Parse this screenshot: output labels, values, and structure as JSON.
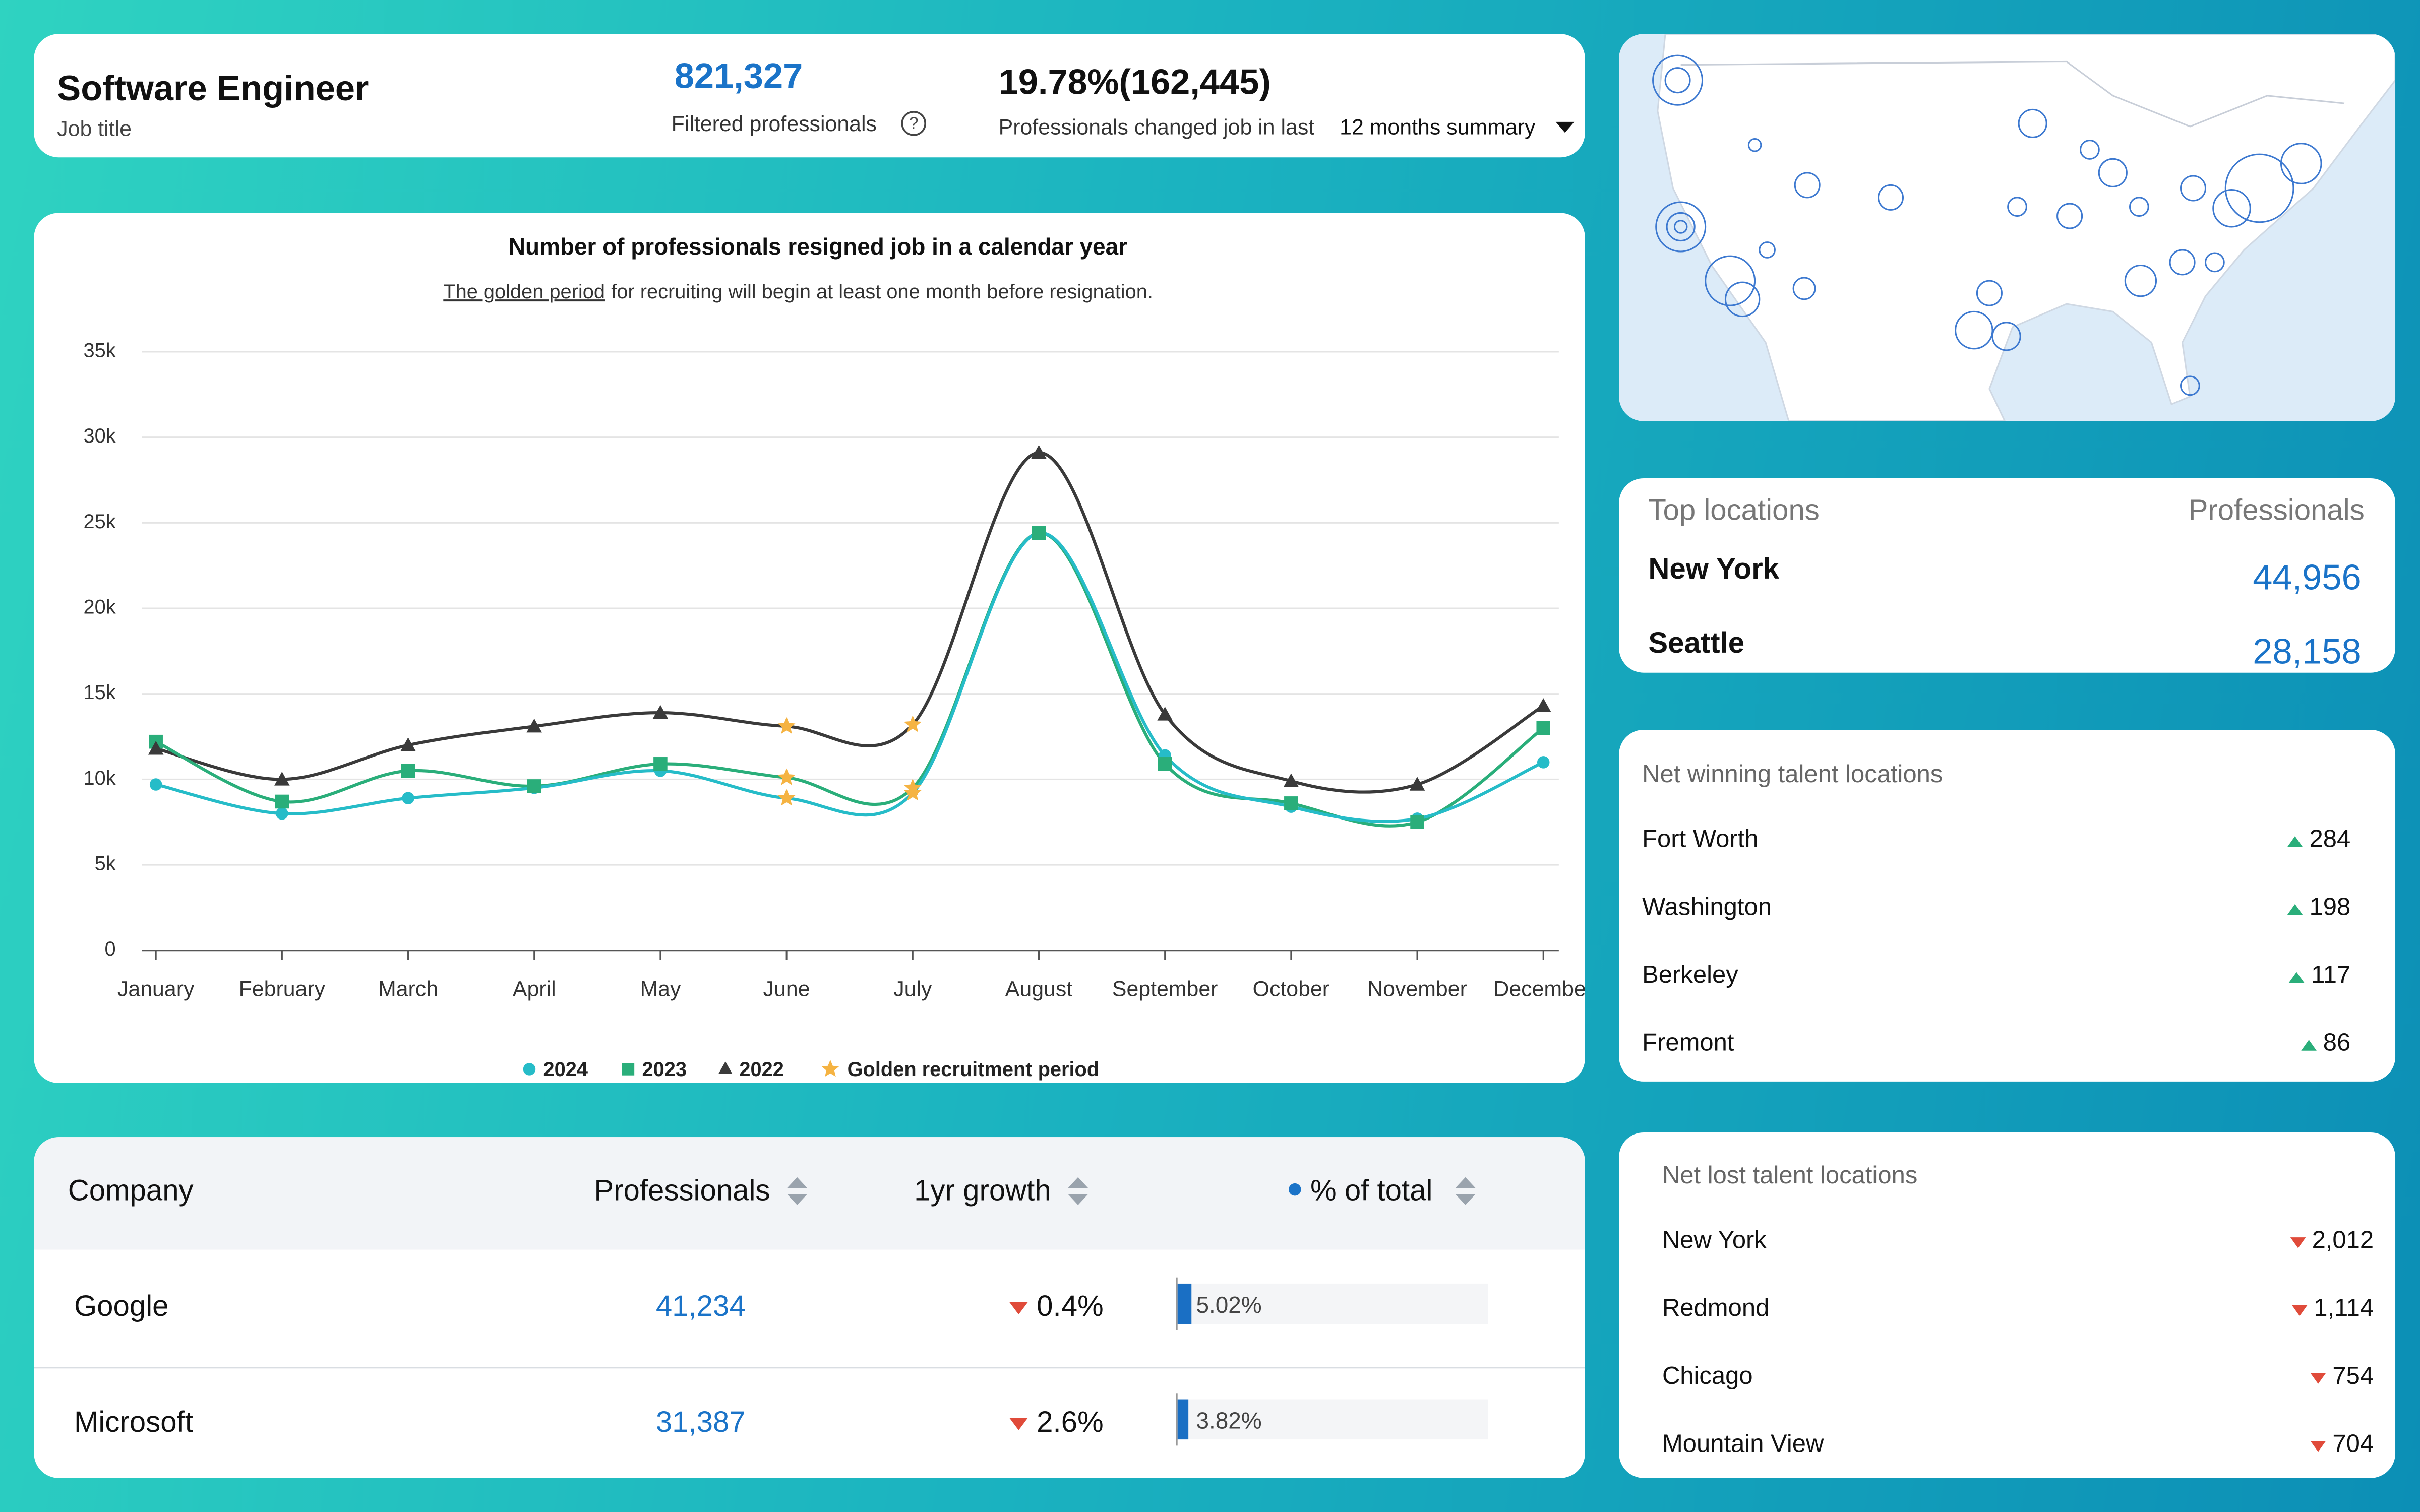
{
  "header": {
    "title": "Software Engineer",
    "subtitle": "Job title",
    "filtered_count": "821,327",
    "filtered_label": "Filtered professionals",
    "changed": "19.78%(162,445)",
    "changed_label": "Professionals changed job in last",
    "period": "12 months summary"
  },
  "chart_data": {
    "type": "line",
    "title": "Number of professionals resigned job in a calendar year",
    "subtitle": [
      "The golden period",
      "for recruiting will begin at least one month before resignation."
    ],
    "categories": [
      "January",
      "February",
      "March",
      "April",
      "May",
      "June",
      "July",
      "August",
      "September",
      "October",
      "November",
      "December"
    ],
    "series": [
      {
        "name": "2024",
        "color": "#26bcc8",
        "marker": "circle",
        "values": [
          9700,
          8000,
          8900,
          9500,
          10500,
          8900,
          9200,
          24400,
          11400,
          8400,
          7700,
          11000
        ]
      },
      {
        "name": "2023",
        "color": "#2aae7a",
        "marker": "square",
        "values": [
          12200,
          8700,
          10500,
          9600,
          10900,
          10100,
          9500,
          24400,
          10900,
          8600,
          7500,
          13000
        ]
      },
      {
        "name": "2022",
        "color": "#3a3a3a",
        "marker": "triangle",
        "values": [
          11800,
          10000,
          12000,
          13100,
          13900,
          13100,
          13200,
          29100,
          13800,
          9900,
          9700,
          14300
        ]
      }
    ],
    "golden_period": {
      "name": "Golden recruitment period",
      "color": "#f5b342",
      "categories": [
        "June",
        "July"
      ]
    },
    "ylim": [
      0,
      35000
    ],
    "yticks": [
      0,
      {
        "value": 5000,
        "label": "5k"
      },
      {
        "value": 10000,
        "label": "10k"
      },
      {
        "value": 15000,
        "label": "15k"
      },
      {
        "value": 20000,
        "label": "20k"
      },
      {
        "value": 25000,
        "label": "25k"
      },
      {
        "value": 30000,
        "label": "30k"
      },
      {
        "value": 35000,
        "label": "35k"
      }
    ],
    "grid": true
  },
  "top_locations": {
    "title": "Top locations",
    "column": "Professionals",
    "rows": [
      [
        "New York",
        "44,956"
      ],
      [
        "Seattle",
        "28,158"
      ]
    ]
  },
  "net_winning": {
    "title": "Net winning talent locations",
    "rows": [
      [
        "Fort Worth",
        "284"
      ],
      [
        "Washington",
        "198"
      ],
      [
        "Berkeley",
        "117"
      ],
      [
        "Fremont",
        "86"
      ]
    ]
  },
  "net_lost": {
    "title": "Net lost talent locations",
    "rows": [
      [
        "New York",
        "2,012"
      ],
      [
        "Redmond",
        "1,114"
      ],
      [
        "Chicago",
        "754"
      ],
      [
        "Mountain View",
        "704"
      ]
    ]
  },
  "table": {
    "columns": [
      "Company",
      "Professionals",
      "1yr growth",
      "% of total"
    ],
    "rows": [
      [
        "Google",
        "41,234",
        "0.4%",
        "5.02%"
      ],
      [
        "Microsoft",
        "31,387",
        "2.6%",
        "3.82%"
      ]
    ]
  }
}
